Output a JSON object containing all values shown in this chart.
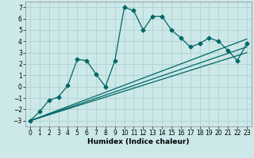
{
  "title": "",
  "xlabel": "Humidex (Indice chaleur)",
  "bg_color": "#cce8e8",
  "line_color": "#006666",
  "grid_color": "#aacccc",
  "xlim": [
    -0.5,
    23.5
  ],
  "ylim": [
    -3.5,
    7.5
  ],
  "xticks": [
    0,
    1,
    2,
    3,
    4,
    5,
    6,
    7,
    8,
    9,
    10,
    11,
    12,
    13,
    14,
    15,
    16,
    17,
    18,
    19,
    20,
    21,
    22,
    23
  ],
  "yticks": [
    -3,
    -2,
    -1,
    0,
    1,
    2,
    3,
    4,
    5,
    6,
    7
  ],
  "main_x": [
    0,
    1,
    2,
    3,
    4,
    5,
    6,
    7,
    8,
    9,
    10,
    11,
    12,
    13,
    14,
    15,
    16,
    17,
    18,
    19,
    20,
    21,
    22,
    23
  ],
  "main_y": [
    -3.0,
    -2.2,
    -1.2,
    -0.9,
    0.1,
    2.4,
    2.3,
    1.1,
    0.0,
    2.3,
    7.0,
    6.7,
    5.0,
    6.2,
    6.2,
    5.0,
    4.3,
    3.5,
    3.8,
    4.3,
    4.0,
    3.2,
    2.3,
    3.8
  ],
  "line1_x": [
    0,
    23
  ],
  "line1_y": [
    -3.0,
    4.2
  ],
  "line2_x": [
    0,
    23
  ],
  "line2_y": [
    -3.0,
    3.5
  ],
  "line3_x": [
    0,
    23
  ],
  "line3_y": [
    -3.0,
    3.0
  ],
  "marker_size": 2.5,
  "linewidth": 0.9,
  "tick_fontsize": 5.5,
  "xlabel_fontsize": 6.5
}
